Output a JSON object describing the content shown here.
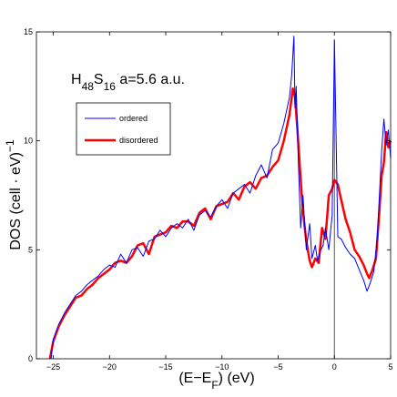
{
  "chart_data": {
    "type": "line",
    "annotation": {
      "parts": [
        {
          "text": "H",
          "role": "base"
        },
        {
          "text": "48",
          "role": "sub"
        },
        {
          "text": "S",
          "role": "base"
        },
        {
          "text": "16",
          "role": "sub"
        },
        {
          "text": " a=5.6 a.u.",
          "role": "base"
        }
      ]
    },
    "xlabel": {
      "parts": [
        {
          "text": "(E−E",
          "role": "base"
        },
        {
          "text": "F",
          "role": "sub"
        },
        {
          "text": ") (eV)",
          "role": "base"
        }
      ]
    },
    "ylabel": {
      "parts": [
        {
          "text": "DOS (cell · eV)",
          "role": "base"
        },
        {
          "text": "−1",
          "role": "sup"
        }
      ]
    },
    "xlim": [
      -26.5,
      5
    ],
    "ylim": [
      0,
      15
    ],
    "xticks": [
      {
        "value": -25,
        "label": "−25"
      },
      {
        "value": -20,
        "label": "−20"
      },
      {
        "value": -15,
        "label": "−15"
      },
      {
        "value": -10,
        "label": "−10"
      },
      {
        "value": -5,
        "label": "−5"
      },
      {
        "value": 0,
        "label": "0"
      },
      {
        "value": 5,
        "label": "5"
      }
    ],
    "yticks": [
      {
        "value": 0,
        "label": "0"
      },
      {
        "value": 5,
        "label": "5"
      },
      {
        "value": 10,
        "label": "10"
      },
      {
        "value": 15,
        "label": "15"
      }
    ],
    "fermi_line_x": 0,
    "legend": {
      "placement": "upper-left"
    },
    "series": [
      {
        "name": "ordered",
        "color": "#0000ff",
        "line_width": 1,
        "x": [
          -25.2,
          -25.0,
          -24.5,
          -24.0,
          -23.5,
          -23.0,
          -22.5,
          -22.0,
          -21.5,
          -21.0,
          -20.5,
          -20.0,
          -19.5,
          -19.0,
          -18.5,
          -18.0,
          -17.5,
          -17.0,
          -16.5,
          -16.0,
          -15.5,
          -15.0,
          -14.5,
          -14.0,
          -13.5,
          -13.0,
          -12.5,
          -12.0,
          -11.5,
          -11.0,
          -10.5,
          -10.0,
          -9.5,
          -9.0,
          -8.5,
          -8.0,
          -7.5,
          -7.0,
          -6.5,
          -6.0,
          -5.5,
          -5.0,
          -4.5,
          -4.0,
          -3.8,
          -3.6,
          -3.5,
          -3.4,
          -3.2,
          -3.0,
          -2.8,
          -2.5,
          -2.2,
          -2.0,
          -1.7,
          -1.5,
          -1.2,
          -1.0,
          -0.8,
          -0.5,
          -0.2,
          0.0,
          0.3,
          0.6,
          1.0,
          1.4,
          1.8,
          2.2,
          2.6,
          2.9,
          3.2,
          3.5,
          3.8,
          4.0,
          4.2,
          4.4,
          4.6,
          4.8,
          5.0
        ],
        "y": [
          0.0,
          0.9,
          1.6,
          2.1,
          2.5,
          2.9,
          3.1,
          3.4,
          3.6,
          3.8,
          4.1,
          4.3,
          4.2,
          4.8,
          4.4,
          5.0,
          5.1,
          4.7,
          5.4,
          5.5,
          5.9,
          5.6,
          6.0,
          6.2,
          6.0,
          6.4,
          5.9,
          6.6,
          6.8,
          6.5,
          7.0,
          7.3,
          6.9,
          7.6,
          7.8,
          8.0,
          7.6,
          8.4,
          8.9,
          8.3,
          9.6,
          9.9,
          10.8,
          12.0,
          13.0,
          14.8,
          11.5,
          12.5,
          9.0,
          6.0,
          7.5,
          5.0,
          6.2,
          4.6,
          5.2,
          4.5,
          5.0,
          5.2,
          6.0,
          5.0,
          6.6,
          14.6,
          5.6,
          5.5,
          5.1,
          4.8,
          4.6,
          4.1,
          3.6,
          3.1,
          3.5,
          4.0,
          5.5,
          7.5,
          9.5,
          11.0,
          9.8,
          10.5,
          9.2
        ]
      },
      {
        "name": "disordered",
        "color": "#ff0000",
        "line_width": 2.5,
        "x": [
          -25.3,
          -25.0,
          -24.5,
          -24.0,
          -23.5,
          -23.0,
          -22.5,
          -22.0,
          -21.5,
          -21.0,
          -20.5,
          -20.0,
          -19.5,
          -19.0,
          -18.5,
          -18.0,
          -17.5,
          -17.0,
          -16.5,
          -16.0,
          -15.5,
          -15.0,
          -14.5,
          -14.0,
          -13.5,
          -13.0,
          -12.5,
          -12.0,
          -11.5,
          -11.0,
          -10.5,
          -10.0,
          -9.5,
          -9.0,
          -8.5,
          -8.0,
          -7.5,
          -7.0,
          -6.5,
          -6.0,
          -5.5,
          -5.0,
          -4.5,
          -4.0,
          -3.7,
          -3.5,
          -3.3,
          -3.1,
          -2.9,
          -2.7,
          -2.5,
          -2.2,
          -2.0,
          -1.7,
          -1.4,
          -1.1,
          -0.8,
          -0.5,
          -0.2,
          0.0,
          0.3,
          0.6,
          1.0,
          1.4,
          1.8,
          2.2,
          2.6,
          2.9,
          3.1,
          3.4,
          3.7,
          4.0,
          4.2,
          4.4,
          4.6,
          4.8,
          5.0
        ],
        "y": [
          0.0,
          0.8,
          1.5,
          2.0,
          2.4,
          2.8,
          2.9,
          3.2,
          3.4,
          3.7,
          3.9,
          4.1,
          4.4,
          4.5,
          4.4,
          4.7,
          5.2,
          5.3,
          4.8,
          5.6,
          5.7,
          5.8,
          6.1,
          6.0,
          6.3,
          6.3,
          6.1,
          6.7,
          6.9,
          6.4,
          7.0,
          7.1,
          7.2,
          7.6,
          7.3,
          7.9,
          8.1,
          7.8,
          8.3,
          8.4,
          8.8,
          9.1,
          10.0,
          11.2,
          12.4,
          12.0,
          10.6,
          9.0,
          7.5,
          6.3,
          5.4,
          4.5,
          4.2,
          4.6,
          4.4,
          6.0,
          5.5,
          7.5,
          7.8,
          8.2,
          8.0,
          7.3,
          6.4,
          5.8,
          5.0,
          4.7,
          4.3,
          3.9,
          3.7,
          4.1,
          4.6,
          6.8,
          8.4,
          9.0,
          10.4,
          9.7,
          10.0
        ]
      }
    ]
  }
}
